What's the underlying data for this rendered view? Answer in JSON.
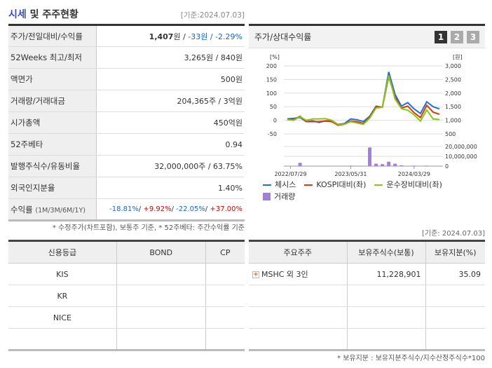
{
  "header": {
    "title_highlight": "시세",
    "title_rest": " 및 주주현황",
    "base_date": "[기준:2024.07.03]"
  },
  "info_rows": [
    {
      "label": "주가/전일대비/수익률",
      "price": "1,407",
      "price_unit": "원 / ",
      "change": "-33원 / -2.29%"
    },
    {
      "label": "52Weeks 최고/최저",
      "value": "3,265원 / 840원"
    },
    {
      "label": "액면가",
      "value": "500원"
    },
    {
      "label": "거래량/거래대금",
      "value": "204,365주 / 3억원"
    },
    {
      "label": "시가총액",
      "value": "450억원"
    },
    {
      "label": "52주베타",
      "value": "0.94"
    },
    {
      "label": "발행주식수/유동비율",
      "value": "32,000,000주 / 63.75%"
    },
    {
      "label": "외국인지분율",
      "value": "1.40%"
    },
    {
      "label": "수익률",
      "label_small": "(1M/3M/6M/1Y)",
      "r1m": "-18.81%",
      "r3m": "+9.92%",
      "r6m": "-22.05%",
      "r1y": "+37.00%"
    }
  ],
  "note1": "* 수정주가(차트포함), 보통주 기준, * 52주베타: 주간수익률 기준",
  "chart_panel": {
    "title": "주가/상대수익률",
    "pages": [
      "1",
      "2",
      "3"
    ],
    "active_page": "1"
  },
  "chart_data": {
    "type": "line",
    "left_unit": "[%]",
    "right_unit": "[원]",
    "ylim": [
      -50,
      200
    ],
    "yticks": [
      "200",
      "150",
      "100",
      "50",
      "0",
      "-50"
    ],
    "y2ticks": [
      "3,000",
      "2,500",
      "2,000",
      "1,500",
      "1,000",
      "500"
    ],
    "volume_ticks": [
      "20,000,000",
      "10,000,000",
      "0"
    ],
    "x_tick_labels": [
      "2022/07/29",
      "2023/05/31",
      "2024/03/29"
    ],
    "x": [
      "2022/07",
      "2022/08",
      "2022/09",
      "2022/10",
      "2022/11",
      "2022/12",
      "2023/01",
      "2023/02",
      "2023/03",
      "2023/04",
      "2023/05",
      "2023/06",
      "2023/07",
      "2023/08",
      "2023/09",
      "2023/10",
      "2023/11",
      "2023/12",
      "2024/01",
      "2024/02",
      "2024/03",
      "2024/04",
      "2024/05",
      "2024/06",
      "2024/07"
    ],
    "series": [
      {
        "name": "체시스",
        "color": "#1f6fe0",
        "values": [
          5,
          7,
          10,
          -5,
          -2,
          -8,
          -2,
          -3,
          -15,
          -12,
          5,
          2,
          -5,
          15,
          52,
          48,
          178,
          95,
          52,
          65,
          42,
          25,
          68,
          50,
          42
        ]
      },
      {
        "name": "KOSPI대비(좌)",
        "color": "#d83a0a",
        "values": [
          3,
          2,
          15,
          -5,
          -5,
          -5,
          -3,
          -5,
          -18,
          -15,
          -3,
          -5,
          -12,
          12,
          48,
          48,
          160,
          85,
          45,
          52,
          28,
          10,
          55,
          30,
          22
        ]
      },
      {
        "name": "운수장비대비(좌)",
        "color": "#8cc614",
        "values": [
          2,
          0,
          13,
          0,
          5,
          5,
          6,
          0,
          -15,
          -15,
          -5,
          -10,
          -15,
          8,
          45,
          48,
          165,
          78,
          43,
          37,
          20,
          -3,
          38,
          5,
          3
        ]
      }
    ],
    "volume": {
      "name": "거래량",
      "color": "#a27fd8",
      "values": [
        0,
        0,
        3400000,
        0,
        0,
        0,
        0,
        0,
        0,
        0,
        500000,
        0,
        0,
        19000000,
        2500000,
        2000000,
        4500000,
        2500000,
        800000,
        0,
        500000,
        0,
        500000,
        0,
        0
      ]
    }
  },
  "base_date2": "[기준: 2024.07.03]",
  "credit": {
    "headers": [
      "신용등급",
      "BOND",
      "CP"
    ],
    "rows": [
      [
        "KIS",
        "",
        ""
      ],
      [
        "KR",
        "",
        ""
      ],
      [
        "NICE",
        "",
        ""
      ],
      [
        "",
        "",
        ""
      ]
    ]
  },
  "holders": {
    "headers": [
      "주요주주",
      "보유주식수(보통)",
      "보유지분(%)"
    ],
    "rows": [
      {
        "name": "MSHC 외 3인",
        "shares": "11,228,901",
        "pct": "35.09"
      }
    ]
  },
  "note2": "* 보유지분 : 보유지분주식수/지수산정주식수*100"
}
